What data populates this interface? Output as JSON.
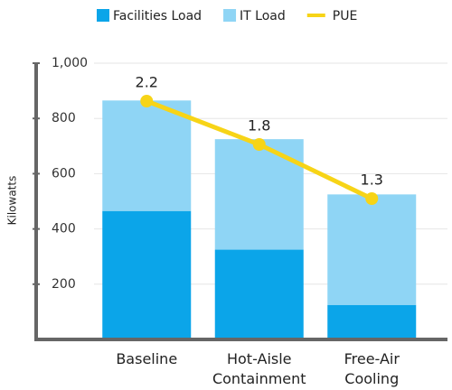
{
  "chart_data": {
    "type": "bar",
    "ylabel": "Kilowatts",
    "categories": [
      "Baseline",
      "Hot-Aisle Containment",
      "Free-Air Cooling"
    ],
    "series": [
      {
        "name": "Facilities Load",
        "color": "#0ba5e9",
        "values": [
          465,
          325,
          125
        ]
      },
      {
        "name": "IT Load",
        "color": "#8fd5f5",
        "values": [
          400,
          400,
          400
        ]
      },
      {
        "name": "PUE",
        "color": "#f7d417",
        "type": "line",
        "axis": "y2",
        "values": [
          2.2,
          1.8,
          1.3
        ]
      }
    ],
    "stacked": true,
    "ylim": [
      0,
      1000
    ],
    "yticks": [
      {
        "value": 1000,
        "label": "1,000"
      },
      800,
      600,
      400,
      200
    ],
    "y2lim": [
      0,
      2.55
    ],
    "grid": true,
    "legend": "top"
  }
}
